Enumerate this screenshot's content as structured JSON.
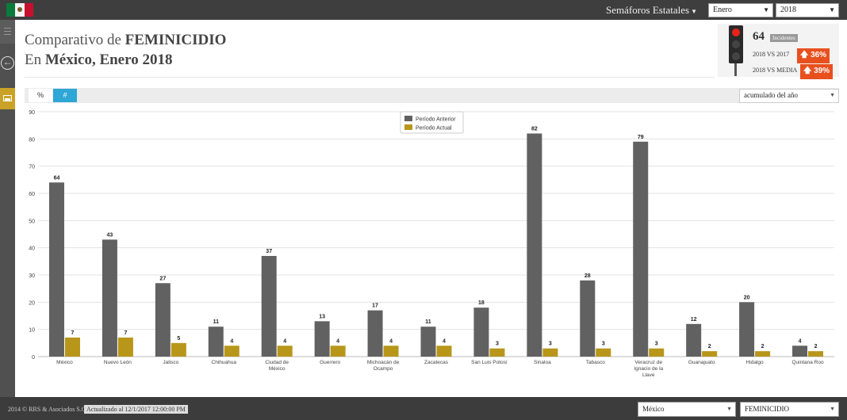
{
  "header": {
    "menu_label": "Semáforos Estatales",
    "month": "Enero",
    "year": "2018"
  },
  "title": {
    "line1_prefix": "Comparativo de ",
    "line1_bold": "FEMINICIDIO",
    "line2_prefix": "En ",
    "line2_bold": "México, Enero 2018"
  },
  "summary": {
    "count": "64",
    "badge": "Incidentes",
    "vs_2017_label": "2018 VS 2017",
    "vs_2017_value": "36%",
    "vs_media_label": "2018 VS MEDIA",
    "vs_media_value": "39%",
    "traffic_light": "red"
  },
  "toolbar": {
    "tab_percent": "%",
    "tab_number": "#",
    "accum_select": "acumulado del año"
  },
  "footer": {
    "copyright": "2014 © RRS & Asociados S.C.",
    "updated": "Actualizado al 12/1/2017 12:00:00 PM",
    "region_select": "México",
    "crime_select": "FEMINICIDIO"
  },
  "colors": {
    "previous": "#616161",
    "current": "#b8961a",
    "accent": "#2ea6d6",
    "alert": "#e8501e"
  },
  "chart_data": {
    "type": "bar",
    "ylim": [
      0,
      90
    ],
    "yticks": [
      0,
      10,
      20,
      30,
      40,
      50,
      60,
      70,
      80,
      90
    ],
    "legend_position": "top-center",
    "grid": true,
    "categories": [
      [
        "México"
      ],
      [
        "Nuevo León"
      ],
      [
        "Jalisco"
      ],
      [
        "Chihuahua"
      ],
      [
        "Ciudad de",
        "México"
      ],
      [
        "Guerrero"
      ],
      [
        "Michoacán de",
        "Ocampo"
      ],
      [
        "Zacatecas"
      ],
      [
        "San Luis Potosí"
      ],
      [
        "Sinaloa"
      ],
      [
        "Tabasco"
      ],
      [
        "Veracruz de",
        "Ignacio de la",
        "Llave"
      ],
      [
        "Guanajuato"
      ],
      [
        "Hidalgo"
      ],
      [
        "Quintana Roo"
      ]
    ],
    "series": [
      {
        "name": "Período Anterior",
        "values": [
          64,
          43,
          27,
          11,
          37,
          13,
          17,
          11,
          18,
          82,
          28,
          79,
          12,
          20,
          4
        ]
      },
      {
        "name": "Período Actual",
        "values": [
          7,
          7,
          5,
          4,
          4,
          4,
          4,
          4,
          3,
          3,
          3,
          3,
          2,
          2,
          2
        ]
      }
    ]
  }
}
